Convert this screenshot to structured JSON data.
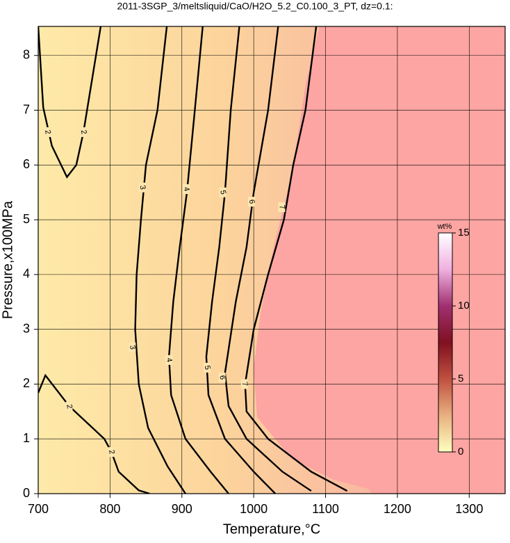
{
  "chart_data": {
    "type": "contour",
    "title": "2011-3SGP_3/meltsliquid/CaO/H2O_5.2_C0.100_3_PT, dz=0.1:",
    "xlabel": "Temperature,°C",
    "ylabel": "Pressure,x100MPa",
    "xlim": [
      700,
      1350
    ],
    "ylim": [
      0,
      8.53
    ],
    "xticks": [
      700,
      800,
      900,
      1000,
      1100,
      1200,
      1300
    ],
    "yticks": [
      0,
      1,
      2,
      3,
      4,
      5,
      6,
      7,
      8
    ],
    "grid": true,
    "line_color": "#000000",
    "series": [
      {
        "level": 2,
        "x": [
          787,
          763,
          753,
          740,
          719,
          707,
          700
        ],
        "values": [
          8.53,
          6.6,
          6.0,
          5.78,
          6.35,
          7.05,
          8.53
        ],
        "label_x": [
          763,
          713
        ],
        "label_y": [
          6.6,
          6.6
        ]
      },
      {
        "level": 2,
        "x": [
          700,
          710,
          743,
          792,
          802,
          812,
          840,
          855
        ],
        "values": [
          1.84,
          2.16,
          1.6,
          1.0,
          0.76,
          0.4,
          0.06,
          0
        ],
        "label_x": [
          743,
          802
        ],
        "label_y": [
          1.59,
          0.76
        ]
      },
      {
        "level": 3,
        "x": [
          879,
          866,
          850,
          843,
          837,
          835,
          840,
          853,
          880,
          905
        ],
        "values": [
          8.53,
          7,
          6,
          5,
          4,
          3,
          2,
          1.2,
          0.5,
          0
        ],
        "label_x": [
          845,
          831
        ],
        "label_y": [
          5.59,
          2.67
        ]
      },
      {
        "level": 4,
        "x": [
          929,
          918,
          907,
          897,
          888,
          882,
          885,
          905,
          940,
          965
        ],
        "values": [
          8.53,
          7,
          5.5,
          4.5,
          3.5,
          2.5,
          1.8,
          1,
          0.4,
          0
        ],
        "label_x": [
          906,
          882
        ],
        "label_y": [
          5.56,
          2.44
        ]
      },
      {
        "level": 5,
        "x": [
          980,
          968,
          960,
          952,
          942,
          934,
          937,
          960,
          1000,
          1030
        ],
        "values": [
          8.53,
          7,
          5.5,
          4.5,
          3.5,
          2.5,
          1.8,
          1,
          0.4,
          0
        ],
        "label_x": [
          957,
          935
        ],
        "label_y": [
          5.5,
          2.3
        ]
      },
      {
        "level": 6,
        "x": [
          1034,
          1020,
          1000,
          990,
          975,
          960,
          965,
          990,
          1040,
          1080
        ],
        "values": [
          8.53,
          7,
          5.5,
          4.5,
          3.5,
          2.2,
          1.6,
          1,
          0.4,
          0.05
        ],
        "label_x": [
          997,
          956
        ],
        "label_y": [
          5.33,
          2.12
        ]
      },
      {
        "level": 7,
        "x": [
          1087,
          1072,
          1055,
          1042,
          1020,
          1000,
          988,
          990,
          1020,
          1080,
          1130
        ],
        "values": [
          8.53,
          7,
          6,
          5,
          4,
          3,
          2,
          1.5,
          1,
          0.4,
          0.05
        ],
        "label_x": [
          1039,
          987
        ],
        "label_y": [
          5.23,
          2.0
        ]
      }
    ],
    "colorbar": {
      "label": "wt%",
      "lim": [
        0,
        15
      ],
      "ticks": [
        0,
        5,
        10,
        15
      ],
      "colors": [
        "#ffffc0",
        "#e8b080",
        "#c05040",
        "#801020",
        "#a03070",
        "#f0b0e0",
        "#ffffff"
      ]
    }
  }
}
